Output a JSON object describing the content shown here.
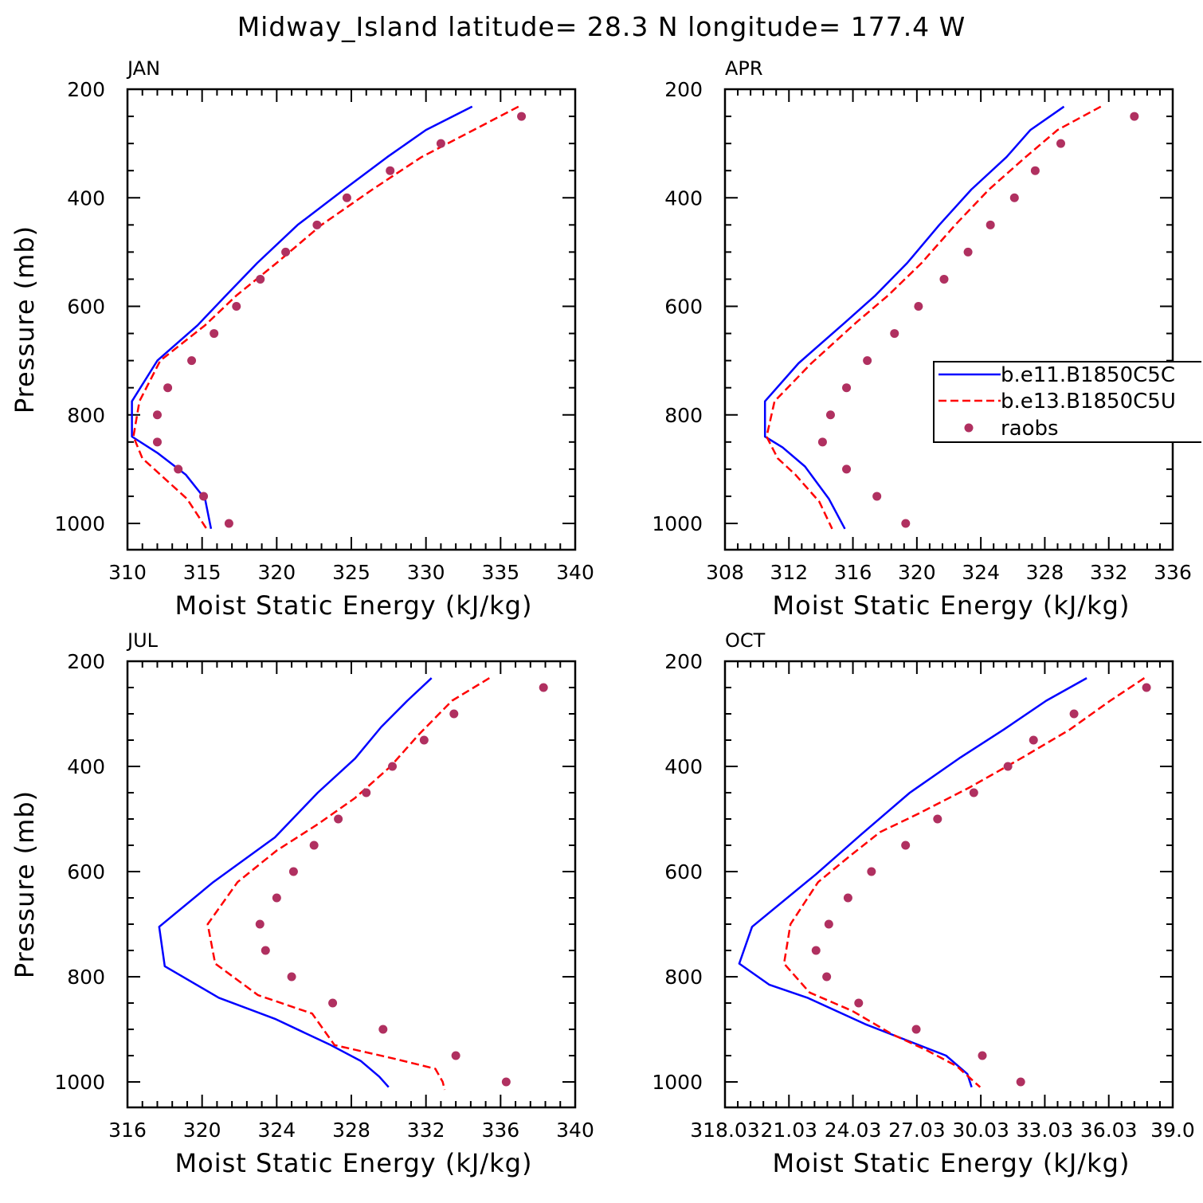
{
  "figure": {
    "title": "Midway_Island  latitude= 28.3 N longitude= 177.4 W"
  },
  "legend": {
    "entries": [
      {
        "label": "b.e11.B1850C5C",
        "color": "#0000ff",
        "style": "solid"
      },
      {
        "label": "b.e13.B1850C5U",
        "color": "#ff0000",
        "style": "dashed"
      },
      {
        "label": "raobs",
        "color": "#b03060",
        "style": "dots"
      }
    ]
  },
  "chart_data": [
    {
      "type": "line",
      "panel": "JAN",
      "xlabel": "Moist Static Energy (kJ/kg)",
      "ylabel": "Pressure (mb)",
      "xlim": [
        310,
        340
      ],
      "ylim": [
        200,
        1025
      ],
      "y_inverted": true,
      "xticks": [
        "310",
        "315",
        "320",
        "325",
        "330",
        "335",
        "340"
      ],
      "yticks": [
        "200",
        "400",
        "600",
        "800",
        "1000"
      ],
      "series": [
        {
          "name": "b.e11.B1850C5C",
          "style": "solid",
          "color": "#0000ff",
          "points": [
            [
              333.1,
              232
            ],
            [
              330.0,
              275
            ],
            [
              327.4,
              325
            ],
            [
              324.5,
              385
            ],
            [
              321.4,
              450
            ],
            [
              318.7,
              520
            ],
            [
              316.6,
              580
            ],
            [
              314.7,
              635
            ],
            [
              312.0,
              700
            ],
            [
              310.3,
              775
            ],
            [
              310.3,
              840
            ],
            [
              312.0,
              870
            ],
            [
              313.9,
              910
            ],
            [
              315.2,
              955
            ],
            [
              315.6,
              1010
            ]
          ]
        },
        {
          "name": "b.e13.B1850C5U",
          "style": "dashed",
          "color": "#ff0000",
          "points": [
            [
              336.2,
              232
            ],
            [
              333.2,
              275
            ],
            [
              329.7,
              325
            ],
            [
              326.4,
              385
            ],
            [
              323.0,
              450
            ],
            [
              320.0,
              520
            ],
            [
              317.3,
              580
            ],
            [
              315.2,
              635
            ],
            [
              312.2,
              700
            ],
            [
              310.8,
              775
            ],
            [
              310.4,
              840
            ],
            [
              311.0,
              880
            ],
            [
              312.2,
              910
            ],
            [
              314.0,
              955
            ],
            [
              315.3,
              1010
            ]
          ]
        },
        {
          "name": "raobs",
          "style": "dots",
          "color": "#b03060",
          "points": [
            [
              336.4,
              250
            ],
            [
              331.0,
              300
            ],
            [
              327.6,
              350
            ],
            [
              324.7,
              400
            ],
            [
              322.7,
              450
            ],
            [
              320.6,
              500
            ],
            [
              318.9,
              550
            ],
            [
              317.3,
              600
            ],
            [
              315.8,
              650
            ],
            [
              314.3,
              700
            ],
            [
              312.7,
              750
            ],
            [
              312.0,
              800
            ],
            [
              312.0,
              850
            ],
            [
              313.4,
              900
            ],
            [
              315.1,
              950
            ],
            [
              316.8,
              1000
            ]
          ]
        }
      ]
    },
    {
      "type": "line",
      "panel": "APR",
      "xlabel": "Moist Static Energy (kJ/kg)",
      "ylabel": "",
      "xlim": [
        308,
        336
      ],
      "ylim": [
        200,
        1025
      ],
      "y_inverted": true,
      "xticks": [
        "308",
        "312",
        "316",
        "320",
        "324",
        "328",
        "332",
        "336"
      ],
      "yticks": [
        "200",
        "400",
        "600",
        "800",
        "1000"
      ],
      "series": [
        {
          "name": "b.e11.B1850C5C",
          "style": "solid",
          "color": "#0000ff",
          "points": [
            [
              329.2,
              232
            ],
            [
              327.1,
              275
            ],
            [
              325.6,
              325
            ],
            [
              323.4,
              385
            ],
            [
              321.4,
              450
            ],
            [
              319.4,
              520
            ],
            [
              317.4,
              580
            ],
            [
              315.5,
              630
            ],
            [
              312.6,
              705
            ],
            [
              310.5,
              775
            ],
            [
              310.5,
              840
            ],
            [
              311.6,
              860
            ],
            [
              313.0,
              895
            ],
            [
              314.5,
              955
            ],
            [
              315.5,
              1010
            ]
          ]
        },
        {
          "name": "b.e13.B1850C5U",
          "style": "dashed",
          "color": "#ff0000",
          "points": [
            [
              331.5,
              232
            ],
            [
              328.8,
              275
            ],
            [
              326.8,
              325
            ],
            [
              324.5,
              385
            ],
            [
              322.4,
              450
            ],
            [
              320.3,
              520
            ],
            [
              318.2,
              580
            ],
            [
              316.2,
              630
            ],
            [
              313.4,
              705
            ],
            [
              311.1,
              775
            ],
            [
              310.6,
              840
            ],
            [
              311.3,
              880
            ],
            [
              312.4,
              910
            ],
            [
              313.9,
              960
            ],
            [
              314.7,
              1010
            ]
          ]
        },
        {
          "name": "raobs",
          "style": "dots",
          "color": "#b03060",
          "points": [
            [
              333.6,
              250
            ],
            [
              329.0,
              300
            ],
            [
              327.4,
              350
            ],
            [
              326.1,
              400
            ],
            [
              324.6,
              450
            ],
            [
              323.2,
              500
            ],
            [
              321.7,
              550
            ],
            [
              320.1,
              600
            ],
            [
              318.6,
              650
            ],
            [
              316.9,
              700
            ],
            [
              315.6,
              750
            ],
            [
              314.6,
              800
            ],
            [
              314.1,
              850
            ],
            [
              315.6,
              900
            ],
            [
              317.5,
              950
            ],
            [
              319.3,
              1000
            ]
          ]
        }
      ]
    },
    {
      "type": "line",
      "panel": "JUL",
      "xlabel": "Moist Static Energy (kJ/kg)",
      "ylabel": "Pressure (mb)",
      "xlim": [
        316,
        340
      ],
      "ylim": [
        200,
        1025
      ],
      "y_inverted": true,
      "xticks": [
        "316",
        "320",
        "324",
        "328",
        "332",
        "336",
        "340"
      ],
      "yticks": [
        "200",
        "400",
        "600",
        "800",
        "1000"
      ],
      "series": [
        {
          "name": "b.e11.B1850C5C",
          "style": "solid",
          "color": "#0000ff",
          "points": [
            [
              332.3,
              232
            ],
            [
              331.0,
              275
            ],
            [
              329.6,
              325
            ],
            [
              328.2,
              385
            ],
            [
              326.2,
              450
            ],
            [
              323.9,
              535
            ],
            [
              320.6,
              620
            ],
            [
              317.7,
              705
            ],
            [
              318.0,
              780
            ],
            [
              320.9,
              840
            ],
            [
              323.9,
              880
            ],
            [
              326.9,
              930
            ],
            [
              328.5,
              960
            ],
            [
              329.5,
              990
            ],
            [
              330.0,
              1010
            ]
          ]
        },
        {
          "name": "b.e13.B1850C5U",
          "style": "dashed",
          "color": "#ff0000",
          "points": [
            [
              335.4,
              232
            ],
            [
              333.4,
              275
            ],
            [
              331.6,
              340
            ],
            [
              330.1,
              400
            ],
            [
              328.2,
              460
            ],
            [
              326.2,
              510
            ],
            [
              324.0,
              560
            ],
            [
              321.9,
              620
            ],
            [
              320.3,
              700
            ],
            [
              320.7,
              775
            ],
            [
              323.0,
              835
            ],
            [
              325.9,
              870
            ],
            [
              327.1,
              930
            ],
            [
              330.2,
              955
            ],
            [
              332.5,
              975
            ],
            [
              332.9,
              1000
            ],
            [
              333.0,
              1015
            ]
          ]
        },
        {
          "name": "raobs",
          "style": "dots",
          "color": "#b03060",
          "points": [
            [
              338.3,
              250
            ],
            [
              333.5,
              300
            ],
            [
              331.9,
              350
            ],
            [
              330.2,
              400
            ],
            [
              328.8,
              450
            ],
            [
              327.3,
              500
            ],
            [
              326.0,
              550
            ],
            [
              324.9,
              600
            ],
            [
              324.0,
              650
            ],
            [
              323.1,
              700
            ],
            [
              323.4,
              750
            ],
            [
              324.8,
              800
            ],
            [
              327.0,
              850
            ],
            [
              329.7,
              900
            ],
            [
              333.6,
              950
            ],
            [
              336.3,
              1000
            ]
          ]
        }
      ]
    },
    {
      "type": "line",
      "panel": "OCT",
      "xlabel": "Moist Static Energy (kJ/kg)",
      "ylabel": "",
      "xlim": [
        318.03,
        339.03
      ],
      "ylim": [
        200,
        1025
      ],
      "y_inverted": true,
      "xticks": [
        "318.03",
        "21.03",
        "24.03",
        "27.03",
        "30.03",
        "33.03",
        "36.03",
        "39.0"
      ],
      "yticks": [
        "200",
        "400",
        "600",
        "800",
        "1000"
      ],
      "series": [
        {
          "name": "b.e11.B1850C5C",
          "style": "solid",
          "color": "#0000ff",
          "points": [
            [
              335.0,
              232
            ],
            [
              333.1,
              275
            ],
            [
              331.1,
              330
            ],
            [
              329.0,
              385
            ],
            [
              326.7,
              450
            ],
            [
              324.4,
              530
            ],
            [
              322.3,
              605
            ],
            [
              319.3,
              705
            ],
            [
              318.7,
              775
            ],
            [
              320.1,
              815
            ],
            [
              321.9,
              840
            ],
            [
              324.6,
              890
            ],
            [
              328.4,
              950
            ],
            [
              329.4,
              985
            ],
            [
              329.6,
              1010
            ]
          ]
        },
        {
          "name": "b.e13.B1850C5U",
          "style": "dashed",
          "color": "#ff0000",
          "points": [
            [
              337.7,
              232
            ],
            [
              336.1,
              275
            ],
            [
              334.2,
              330
            ],
            [
              331.9,
              385
            ],
            [
              329.5,
              440
            ],
            [
              327.1,
              490
            ],
            [
              325.3,
              525
            ],
            [
              323.9,
              570
            ],
            [
              322.4,
              620
            ],
            [
              321.1,
              700
            ],
            [
              320.8,
              775
            ],
            [
              322.0,
              830
            ],
            [
              324.0,
              865
            ],
            [
              325.9,
              910
            ],
            [
              327.5,
              940
            ],
            [
              328.9,
              970
            ],
            [
              330.0,
              1010
            ]
          ]
        },
        {
          "name": "raobs",
          "style": "dots",
          "color": "#b03060",
          "points": [
            [
              337.8,
              250
            ],
            [
              334.4,
              300
            ],
            [
              332.5,
              350
            ],
            [
              331.3,
              400
            ],
            [
              329.7,
              450
            ],
            [
              328.0,
              500
            ],
            [
              326.5,
              550
            ],
            [
              324.9,
              600
            ],
            [
              323.8,
              650
            ],
            [
              322.9,
              700
            ],
            [
              322.3,
              750
            ],
            [
              322.8,
              800
            ],
            [
              324.3,
              850
            ],
            [
              327.0,
              900
            ],
            [
              330.1,
              950
            ],
            [
              331.9,
              1000
            ]
          ]
        }
      ]
    }
  ]
}
